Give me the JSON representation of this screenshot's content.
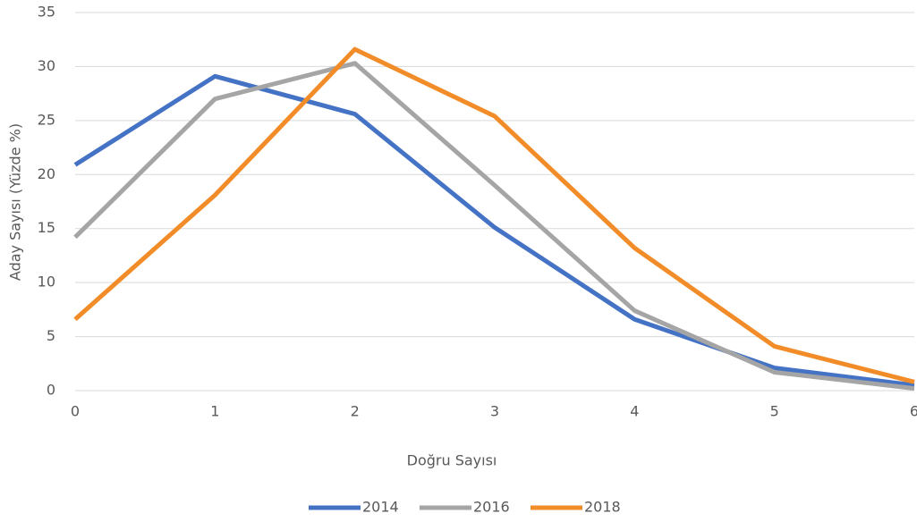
{
  "chart_data": {
    "type": "line",
    "x_label": "Doğru Sayısı",
    "y_label": "Aday Sayısı (Yüzde %)",
    "x": [
      0,
      1,
      2,
      3,
      4,
      5,
      6
    ],
    "xlim": [
      0,
      6
    ],
    "xticks": [
      0,
      1,
      2,
      3,
      4,
      5,
      6
    ],
    "ylim": [
      0,
      35
    ],
    "yticks": [
      0,
      5,
      10,
      15,
      20,
      25,
      30,
      35
    ],
    "grid": true,
    "legend": "bottom",
    "series": [
      {
        "name": "2014",
        "color": "#4472c4",
        "values": [
          20.9,
          29.1,
          25.6,
          15.1,
          6.6,
          2.1,
          0.5
        ]
      },
      {
        "name": "2016",
        "color": "#a5a5a5",
        "values": [
          14.2,
          27.0,
          30.3,
          19.0,
          7.4,
          1.7,
          0.2
        ]
      },
      {
        "name": "2018",
        "color": "#f28c28",
        "values": [
          6.6,
          18.1,
          31.6,
          25.4,
          13.2,
          4.1,
          0.8
        ]
      }
    ]
  }
}
